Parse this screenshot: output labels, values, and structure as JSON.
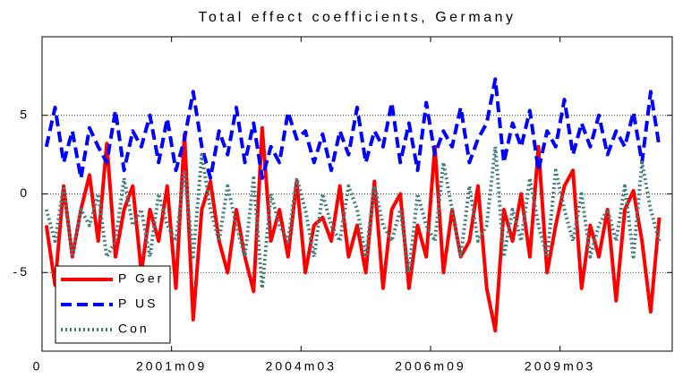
{
  "chart_data": {
    "type": "line",
    "title": "Total effect coefficients, Germany",
    "x": [
      1,
      3,
      5,
      7,
      9,
      11,
      13,
      15,
      17,
      19,
      21,
      23,
      25,
      27,
      29,
      31,
      33,
      35,
      37,
      39,
      41,
      43,
      45,
      47,
      49,
      51,
      53,
      55,
      57,
      59,
      61,
      63,
      65,
      67,
      69,
      71,
      73,
      75,
      77,
      79,
      81,
      83,
      85,
      87,
      89,
      91,
      93,
      95,
      97,
      99,
      101,
      103,
      105,
      107,
      109,
      111,
      113,
      115,
      117,
      119,
      121,
      123,
      125,
      127,
      129,
      131,
      133,
      135,
      137,
      139,
      141,
      143
    ],
    "xlim": [
      0,
      146
    ],
    "xticks": [
      {
        "value": 0,
        "label": "0"
      },
      {
        "value": 30,
        "label": "2001m09"
      },
      {
        "value": 60,
        "label": "2004m03"
      },
      {
        "value": 90,
        "label": "2006m09"
      },
      {
        "value": 120,
        "label": "2009m03"
      }
    ],
    "ylim": [
      -10,
      10
    ],
    "yticks": [
      -5,
      0,
      5
    ],
    "grid": true,
    "legend": "lower-left",
    "series": [
      {
        "name": "P Ger",
        "color": "#ff0000",
        "dash": "solid",
        "values": [
          -2,
          -5.8,
          0.5,
          -4,
          -1,
          1.2,
          -3,
          3.2,
          -4,
          -1,
          0.5,
          -5,
          -1,
          -3,
          0.5,
          -6,
          3.8,
          -8,
          -1,
          0.8,
          -3,
          -5,
          -1,
          -4,
          -6.2,
          4.2,
          -3,
          -1,
          -4,
          0.8,
          -5,
          -2,
          -1.5,
          -3,
          0.5,
          -4,
          -2,
          -5,
          0.8,
          -6,
          -1,
          0,
          -6,
          -2,
          -4,
          3,
          -5,
          -1,
          -4,
          -3,
          0.5,
          -6,
          -8.7,
          -1,
          -3,
          0,
          -4,
          3,
          -5,
          -2,
          0.5,
          1.5,
          -6,
          -2,
          -4,
          -1,
          -6.8,
          -1,
          0.2,
          -3,
          -7.5,
          -1.5
        ]
      },
      {
        "name": "P US",
        "color": "#0000ff",
        "dash": "dashed",
        "values": [
          3,
          5.5,
          2,
          4,
          1,
          4.2,
          3,
          2,
          5.3,
          1.5,
          4,
          3,
          5,
          2,
          4.8,
          1.5,
          3.5,
          6.5,
          3,
          1,
          4,
          2.5,
          5.5,
          2,
          4.5,
          1,
          3,
          2,
          5.2,
          3.5,
          4,
          2,
          3.8,
          1.5,
          4,
          2.5,
          5.5,
          2,
          4,
          3,
          5.8,
          2,
          4.5,
          1.5,
          5.8,
          2.5,
          4,
          3,
          5.5,
          2,
          3.5,
          4.5,
          7.3,
          2,
          4.5,
          3,
          5.3,
          1.5,
          4,
          3,
          6,
          2.5,
          4.5,
          3,
          5,
          2.5,
          4,
          3,
          5.2,
          2,
          6.5,
          3
        ]
      },
      {
        "name": "Con",
        "color": "#3f7f7f",
        "dash": "dotted",
        "values": [
          -1,
          -3,
          0.5,
          -4,
          -1,
          -2,
          0,
          -4,
          -3,
          1,
          -2,
          -1,
          -4,
          0,
          -2,
          -3,
          1.5,
          -4,
          2.5,
          -1,
          -3,
          0.5,
          -2,
          -4,
          1,
          -6,
          0,
          -2,
          -3,
          1,
          -1,
          -4,
          0,
          -2,
          -3,
          0.5,
          -1,
          -4,
          0.5,
          -2,
          -3,
          -1,
          -5,
          0,
          -2,
          -3,
          2,
          -1,
          -4,
          0.5,
          -3,
          -2,
          3,
          -4,
          -1,
          -3,
          1,
          -2,
          -4,
          1.5,
          -1,
          -3,
          0,
          -4,
          -2,
          -1,
          -3,
          0.5,
          -4,
          2,
          -1,
          -3
        ]
      }
    ]
  }
}
